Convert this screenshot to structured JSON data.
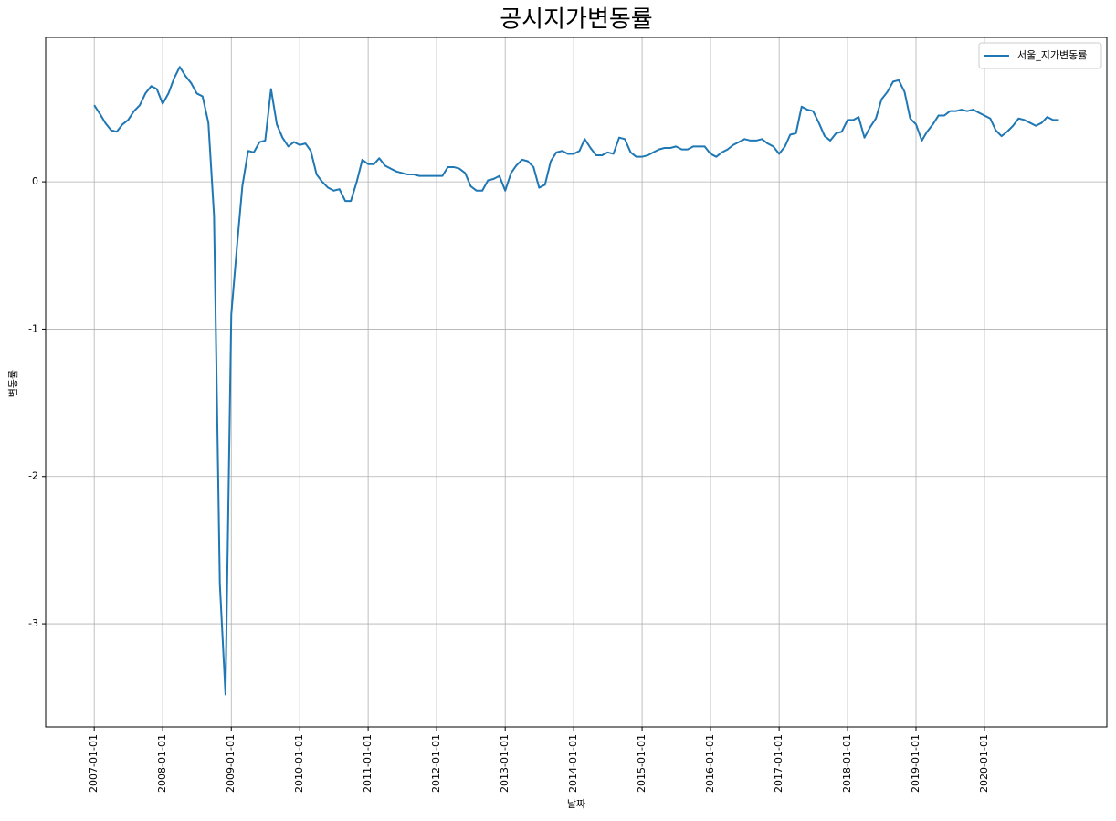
{
  "chart_data": {
    "type": "line",
    "title": "공시지가변동률",
    "x_label": "날짜",
    "y_label": "변동률",
    "x": [
      "2007-01-01",
      "2007-02-01",
      "2007-03-01",
      "2007-04-01",
      "2007-05-01",
      "2007-06-01",
      "2007-07-01",
      "2007-08-01",
      "2007-09-01",
      "2007-10-01",
      "2007-11-01",
      "2007-12-01",
      "2008-01-01",
      "2008-02-01",
      "2008-03-01",
      "2008-04-01",
      "2008-05-01",
      "2008-06-01",
      "2008-07-01",
      "2008-08-01",
      "2008-09-01",
      "2008-10-01",
      "2008-11-01",
      "2008-12-01",
      "2009-01-01",
      "2009-02-01",
      "2009-03-01",
      "2009-04-01",
      "2009-05-01",
      "2009-06-01",
      "2009-07-01",
      "2009-08-01",
      "2009-09-01",
      "2009-10-01",
      "2009-11-01",
      "2009-12-01",
      "2010-01-01",
      "2010-02-01",
      "2010-03-01",
      "2010-04-01",
      "2010-05-01",
      "2010-06-01",
      "2010-07-01",
      "2010-08-01",
      "2010-09-01",
      "2010-10-01",
      "2010-11-01",
      "2010-12-01",
      "2011-01-01",
      "2011-02-01",
      "2011-03-01",
      "2011-04-01",
      "2011-05-01",
      "2011-06-01",
      "2011-07-01",
      "2011-08-01",
      "2011-09-01",
      "2011-10-01",
      "2011-11-01",
      "2011-12-01",
      "2012-01-01",
      "2012-02-01",
      "2012-03-01",
      "2012-04-01",
      "2012-05-01",
      "2012-06-01",
      "2012-07-01",
      "2012-08-01",
      "2012-09-01",
      "2012-10-01",
      "2012-11-01",
      "2012-12-01",
      "2013-01-01",
      "2013-02-01",
      "2013-03-01",
      "2013-04-01",
      "2013-05-01",
      "2013-06-01",
      "2013-07-01",
      "2013-08-01",
      "2013-09-01",
      "2013-10-01",
      "2013-11-01",
      "2013-12-01",
      "2014-01-01",
      "2014-02-01",
      "2014-03-01",
      "2014-04-01",
      "2014-05-01",
      "2014-06-01",
      "2014-07-01",
      "2014-08-01",
      "2014-09-01",
      "2014-10-01",
      "2014-11-01",
      "2014-12-01",
      "2015-01-01",
      "2015-02-01",
      "2015-03-01",
      "2015-04-01",
      "2015-05-01",
      "2015-06-01",
      "2015-07-01",
      "2015-08-01",
      "2015-09-01",
      "2015-10-01",
      "2015-11-01",
      "2015-12-01",
      "2016-01-01",
      "2016-02-01",
      "2016-03-01",
      "2016-04-01",
      "2016-05-01",
      "2016-06-01",
      "2016-07-01",
      "2016-08-01",
      "2016-09-01",
      "2016-10-01",
      "2016-11-01",
      "2016-12-01",
      "2017-01-01",
      "2017-02-01",
      "2017-03-01",
      "2017-04-01",
      "2017-05-01",
      "2017-06-01",
      "2017-07-01",
      "2017-08-01",
      "2017-09-01",
      "2017-10-01",
      "2017-11-01",
      "2017-12-01",
      "2018-01-01",
      "2018-02-01",
      "2018-03-01",
      "2018-04-01",
      "2018-05-01",
      "2018-06-01",
      "2018-07-01",
      "2018-08-01",
      "2018-09-01",
      "2018-10-01",
      "2018-11-01",
      "2018-12-01",
      "2019-01-01",
      "2019-02-01",
      "2019-03-01",
      "2019-04-01",
      "2019-05-01",
      "2019-06-01",
      "2019-07-01",
      "2019-08-01",
      "2019-09-01",
      "2019-10-01",
      "2019-11-01",
      "2019-12-01",
      "2020-01-01",
      "2020-02-01",
      "2020-03-01",
      "2020-04-01",
      "2020-05-01",
      "2020-06-01",
      "2020-07-01",
      "2020-08-01",
      "2020-09-01",
      "2020-10-01",
      "2020-11-01",
      "2020-12-01",
      "2021-01-01",
      "2021-02-01"
    ],
    "series": [
      {
        "name": "서울_지가변동률",
        "color": "#1f77b4",
        "values": [
          0.52,
          0.46,
          0.4,
          0.35,
          0.34,
          0.39,
          0.42,
          0.48,
          0.52,
          0.6,
          0.65,
          0.63,
          0.53,
          0.6,
          0.7,
          0.78,
          0.72,
          0.67,
          0.6,
          0.58,
          0.4,
          -0.23,
          -2.73,
          -3.48,
          -0.9,
          -0.43,
          -0.03,
          0.21,
          0.2,
          0.27,
          0.28,
          0.63,
          0.39,
          0.3,
          0.24,
          0.27,
          0.25,
          0.26,
          0.21,
          0.05,
          0.0,
          -0.04,
          -0.06,
          -0.05,
          -0.13,
          -0.13,
          0.0,
          0.15,
          0.12,
          0.12,
          0.16,
          0.11,
          0.09,
          0.07,
          0.06,
          0.05,
          0.05,
          0.04,
          0.04,
          0.04,
          0.04,
          0.04,
          0.1,
          0.1,
          0.09,
          0.06,
          -0.03,
          -0.06,
          -0.06,
          0.01,
          0.02,
          0.04,
          -0.06,
          0.06,
          0.11,
          0.15,
          0.14,
          0.1,
          -0.04,
          -0.02,
          0.14,
          0.2,
          0.21,
          0.19,
          0.19,
          0.21,
          0.29,
          0.23,
          0.18,
          0.18,
          0.2,
          0.19,
          0.3,
          0.29,
          0.2,
          0.17,
          0.17,
          0.18,
          0.2,
          0.22,
          0.23,
          0.23,
          0.24,
          0.22,
          0.22,
          0.24,
          0.24,
          0.24,
          0.19,
          0.17,
          0.2,
          0.22,
          0.25,
          0.27,
          0.29,
          0.28,
          0.28,
          0.29,
          0.26,
          0.24,
          0.19,
          0.24,
          0.32,
          0.33,
          0.51,
          0.49,
          0.48,
          0.4,
          0.31,
          0.28,
          0.33,
          0.34,
          0.42,
          0.42,
          0.44,
          0.3,
          0.37,
          0.43,
          0.56,
          0.61,
          0.68,
          0.69,
          0.61,
          0.43,
          0.39,
          0.28,
          0.34,
          0.39,
          0.45,
          0.45,
          0.48,
          0.48,
          0.49,
          0.48,
          0.49,
          0.47,
          0.45,
          0.43,
          0.35,
          0.31,
          0.34,
          0.38,
          0.43,
          0.42,
          0.4,
          0.38,
          0.4,
          0.44,
          0.42,
          0.42
        ]
      }
    ],
    "xlim": [
      "2006-04-17",
      "2021-10-15"
    ],
    "xticks": [
      "2007-01-01",
      "2008-01-01",
      "2009-01-01",
      "2010-01-01",
      "2011-01-01",
      "2012-01-01",
      "2013-01-01",
      "2014-01-01",
      "2015-01-01",
      "2016-01-01",
      "2017-01-01",
      "2018-01-01",
      "2019-01-01",
      "2020-01-01"
    ],
    "ylim": [
      -3.7,
      0.98
    ],
    "yticks": [
      -3,
      -2,
      -1,
      0
    ],
    "grid": true,
    "legend": "upper right"
  }
}
